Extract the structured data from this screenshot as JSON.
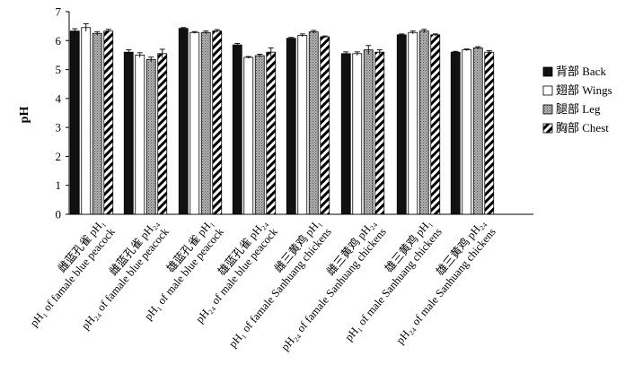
{
  "chart_data": {
    "type": "bar",
    "ylabel": "pH",
    "ylim": [
      0,
      7
    ],
    "yticks": [
      0,
      1,
      2,
      3,
      4,
      5,
      6,
      7
    ],
    "grid": false,
    "legend_position": "right",
    "categories": [
      {
        "zh": "雌蓝孔雀 pH₁",
        "en": "pH₁ of famale blue peacock"
      },
      {
        "zh": "雌蓝孔雀 pH₂₄",
        "en": "pH₂₄ of famale blue peacock"
      },
      {
        "zh": "雄蓝孔雀 pH₁",
        "en": "pH₁ of male blue peacock"
      },
      {
        "zh": "雄蓝孔雀 pH₂₄",
        "en": "pH₂₄ of male blue peacock"
      },
      {
        "zh": "雌三黄鸡 pH₁",
        "en": "pH₁ of famale Sanhuang chickens"
      },
      {
        "zh": "雌三黄鸡 pH₂₄",
        "en": "pH₂₄ of famale Sanhuang chickens"
      },
      {
        "zh": "雄三黄鸡 pH₁",
        "en": "pH₁ of male Sanhuang chickens"
      },
      {
        "zh": "雄三黄鸡 pH₂₄",
        "en": "pH₂₄ of male Sanhuang chickens"
      }
    ],
    "series": [
      {
        "name": "背部 Back",
        "pattern": "solid",
        "color": "#111111",
        "values": [
          6.33,
          5.6,
          6.42,
          5.85,
          6.08,
          5.55,
          6.2,
          5.6
        ],
        "errors": [
          0.08,
          0.08,
          0.03,
          0.05,
          0.03,
          0.06,
          0.03,
          0.03
        ]
      },
      {
        "name": "翅部 Wings",
        "pattern": "white",
        "color": "#ffffff",
        "values": [
          6.45,
          5.5,
          6.28,
          5.42,
          6.18,
          5.55,
          6.28,
          5.68
        ],
        "errors": [
          0.13,
          0.08,
          0.03,
          0.03,
          0.05,
          0.06,
          0.05,
          0.03
        ]
      },
      {
        "name": "腿部 Leg",
        "pattern": "dotted",
        "color": "#999999",
        "values": [
          6.25,
          5.35,
          6.28,
          5.48,
          6.3,
          5.68,
          6.33,
          5.75
        ],
        "errors": [
          0.06,
          0.08,
          0.05,
          0.05,
          0.05,
          0.15,
          0.06,
          0.04
        ]
      },
      {
        "name": "胸部 Chest",
        "pattern": "hatch",
        "color": "#000000",
        "values": [
          6.33,
          5.55,
          6.33,
          5.6,
          6.13,
          5.6,
          6.2,
          5.6
        ],
        "errors": [
          0.06,
          0.15,
          0.05,
          0.15,
          0.03,
          0.08,
          0.03,
          0.05
        ]
      }
    ]
  }
}
